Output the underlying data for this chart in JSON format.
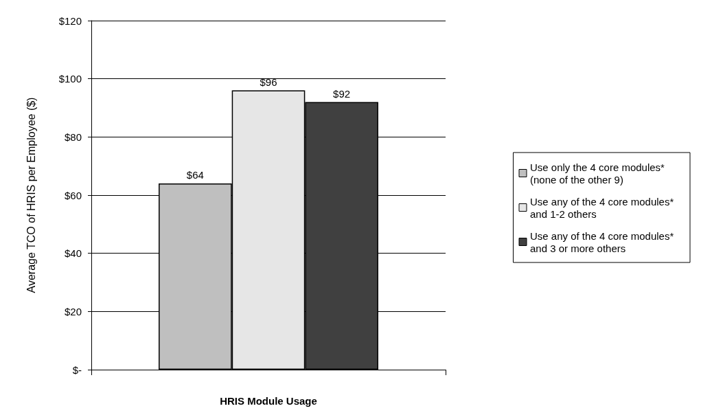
{
  "chart_data": {
    "type": "bar",
    "xlabel": "HRIS Module Usage",
    "ylabel": "Average TCO of HRIS per Employee ($)",
    "categories": [
      null
    ],
    "series": [
      {
        "name": "Use only the 4 core modules* (none of the other 9)",
        "color": "#bfbfbf",
        "values": [
          64
        ],
        "value_labels": [
          "$64"
        ]
      },
      {
        "name": "Use any of the 4 core modules* and 1-2 others",
        "color": "#e6e6e6",
        "values": [
          96
        ],
        "value_labels": [
          "$96"
        ]
      },
      {
        "name": "Use any of the 4 core modules* and 3 or more others",
        "color": "#404040",
        "values": [
          92
        ],
        "value_labels": [
          "$92"
        ]
      }
    ],
    "ylim": [
      0,
      120
    ],
    "yticks": [
      {
        "value": 0,
        "label": "$-"
      },
      {
        "value": 20,
        "label": "$20"
      },
      {
        "value": 40,
        "label": "$40"
      },
      {
        "value": 60,
        "label": "$60"
      },
      {
        "value": 80,
        "label": "$80"
      },
      {
        "value": 100,
        "label": "$100"
      },
      {
        "value": 120,
        "label": "$120"
      }
    ],
    "grid": "y",
    "legend": "right"
  }
}
